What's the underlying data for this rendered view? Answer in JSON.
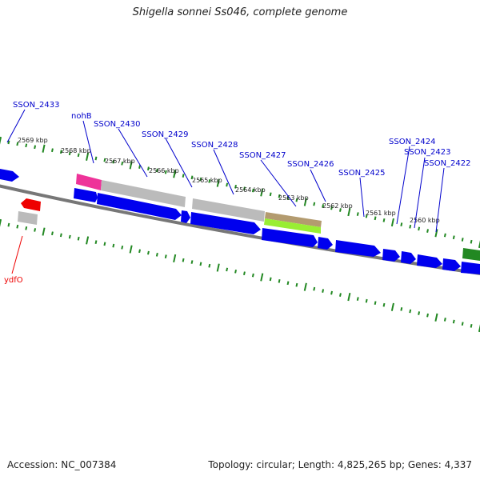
{
  "title": "Shigella sonnei Ss046, complete genome",
  "footer": {
    "accession": "Accession: NC_007384",
    "summary": "Topology: circular; Length: 4,825,265 bp; Genes: 4,337"
  },
  "colors": {
    "forward_gene": "#0000ee",
    "reverse_gene": "#ee0000",
    "backbone": "#777777",
    "tick": "#228822",
    "feature_gray": "#bbbbbb",
    "feature_magenta": "#ee3399",
    "feature_tan": "#b39b6f",
    "feature_lime": "#99ee33",
    "feature_green": "#228822"
  },
  "scale": {
    "ticks": [
      "2569 kbp",
      "2568 kbp",
      "2567 kbp",
      "2566 kbp",
      "2565 kbp",
      "2564 kbp",
      "2563 kbp",
      "2562 kbp",
      "2561 kbp",
      "2560 kbp"
    ]
  },
  "genes": [
    {
      "name": "SSON_2433",
      "strand": "forward"
    },
    {
      "name": "nohB",
      "strand": "forward"
    },
    {
      "name": "SSON_2430",
      "strand": "forward"
    },
    {
      "name": "SSON_2429",
      "strand": "forward"
    },
    {
      "name": "SSON_2428",
      "strand": "forward"
    },
    {
      "name": "SSON_2427",
      "strand": "forward"
    },
    {
      "name": "SSON_2426",
      "strand": "forward"
    },
    {
      "name": "SSON_2425",
      "strand": "forward"
    },
    {
      "name": "SSON_2424",
      "strand": "forward"
    },
    {
      "name": "SSON_2423",
      "strand": "forward"
    },
    {
      "name": "SSON_2422",
      "strand": "forward"
    },
    {
      "name": "ydfO",
      "strand": "reverse"
    }
  ]
}
